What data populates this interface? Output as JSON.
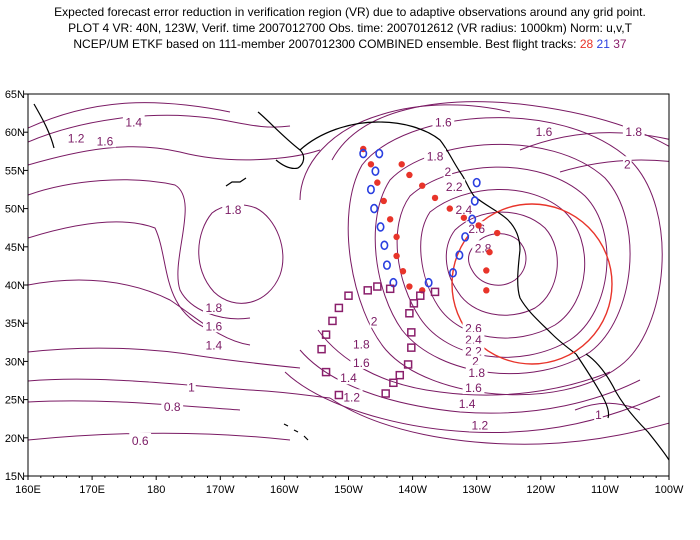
{
  "title": {
    "line1": "Expected forecast error reduction in verification region (VR) due to adaptive observations around any grid point.",
    "line2": "PLOT 4 VR: 40N, 123W, Verif. time 2007012700 Obs. time: 2007012612 (VR radius: 1000km) Norm: u,v,T",
    "line3_prefix": "NCEP/UM ETKF based on 111-member 2007012300 COMBINED ensemble.  Best flight tracks:",
    "track_ids": [
      "28",
      "21",
      "37"
    ]
  },
  "colors": {
    "contour": "#7a1a64",
    "verification_circle": "#e8342a",
    "track_28": "#e8342a",
    "track_21": "#2a3fe0",
    "track_37": "#8a1f6b",
    "coast": "#000000"
  },
  "axes": {
    "lon_labels": [
      "160E",
      "170E",
      "180",
      "170W",
      "160W",
      "150W",
      "140W",
      "130W",
      "120W",
      "110W",
      "100W"
    ],
    "lat_labels": [
      "15N",
      "20N",
      "25N",
      "30N",
      "35N",
      "40N",
      "45N",
      "50N",
      "55N",
      "60N",
      "65N"
    ],
    "lon_range_east": [
      160,
      260
    ],
    "lat_range": [
      15,
      65
    ]
  },
  "verification_region": {
    "lat": 40,
    "lon": -123,
    "radius_km": 1000
  },
  "contour_labels": [
    {
      "value": "1.2",
      "lat": 59.2,
      "lon": 167.5
    },
    {
      "value": "1.4",
      "lat": 61.3,
      "lon": 176.5
    },
    {
      "value": "1.6",
      "lat": 58.8,
      "lon": 172.0
    },
    {
      "value": "1.8",
      "lat": 49.8,
      "lon": 192.0
    },
    {
      "value": "1.8",
      "lat": 37.0,
      "lon": 189.0
    },
    {
      "value": "1.6",
      "lat": 34.6,
      "lon": 189.0
    },
    {
      "value": "1.4",
      "lat": 32.1,
      "lon": 189.0
    },
    {
      "value": "1",
      "lat": 26.6,
      "lon": 185.5
    },
    {
      "value": "0.8",
      "lat": 24.0,
      "lon": 182.5
    },
    {
      "value": "0.6",
      "lat": 19.6,
      "lon": 177.5
    },
    {
      "value": "1.6",
      "lat": 61.3,
      "lon": 224.8
    },
    {
      "value": "1.8",
      "lat": 56.8,
      "lon": 223.5
    },
    {
      "value": "2",
      "lat": 54.8,
      "lon": 225.5
    },
    {
      "value": "2.2",
      "lat": 52.8,
      "lon": 226.5
    },
    {
      "value": "2.4",
      "lat": 49.8,
      "lon": 228.0
    },
    {
      "value": "2.6",
      "lat": 47.3,
      "lon": 230.0
    },
    {
      "value": "2.8",
      "lat": 44.8,
      "lon": 231.0
    },
    {
      "value": "2",
      "lat": 35.2,
      "lon": 214.0
    },
    {
      "value": "1.8",
      "lat": 32.2,
      "lon": 212.0
    },
    {
      "value": "1.6",
      "lat": 29.8,
      "lon": 212.0
    },
    {
      "value": "1.4",
      "lat": 27.8,
      "lon": 210.0
    },
    {
      "value": "1.2",
      "lat": 25.3,
      "lon": 210.5
    },
    {
      "value": "2.6",
      "lat": 34.3,
      "lon": 229.5
    },
    {
      "value": "2.4",
      "lat": 32.8,
      "lon": 229.5
    },
    {
      "value": "2.2",
      "lat": 31.3,
      "lon": 229.5
    },
    {
      "value": "2",
      "lat": 30.0,
      "lon": 229.8
    },
    {
      "value": "1.8",
      "lat": 28.5,
      "lon": 230.0
    },
    {
      "value": "1.6",
      "lat": 26.5,
      "lon": 229.5
    },
    {
      "value": "1.4",
      "lat": 24.4,
      "lon": 228.5
    },
    {
      "value": "1.2",
      "lat": 21.6,
      "lon": 230.5
    },
    {
      "value": "1.6",
      "lat": 60.0,
      "lon": 240.5
    },
    {
      "value": "1.8",
      "lat": 60.0,
      "lon": 254.5
    },
    {
      "value": "2",
      "lat": 55.8,
      "lon": 253.5
    },
    {
      "value": "1",
      "lat": 23.0,
      "lon": 249.0
    }
  ],
  "tracks": [
    {
      "id": "28",
      "marker": "dot",
      "points": [
        {
          "lat": 57.8,
          "lon": 212.3
        },
        {
          "lat": 55.8,
          "lon": 213.5
        },
        {
          "lat": 53.4,
          "lon": 214.5
        },
        {
          "lat": 51.0,
          "lon": 215.5
        },
        {
          "lat": 48.6,
          "lon": 216.5
        },
        {
          "lat": 46.3,
          "lon": 217.5
        },
        {
          "lat": 43.8,
          "lon": 217.5
        },
        {
          "lat": 41.8,
          "lon": 218.5
        },
        {
          "lat": 39.8,
          "lon": 219.5
        },
        {
          "lat": 39.3,
          "lon": 221.5
        },
        {
          "lat": 39.3,
          "lon": 231.5
        },
        {
          "lat": 41.9,
          "lon": 231.5
        },
        {
          "lat": 44.3,
          "lon": 232.0
        },
        {
          "lat": 46.8,
          "lon": 233.2
        },
        {
          "lat": 47.8,
          "lon": 230.3
        },
        {
          "lat": 48.8,
          "lon": 228.0
        },
        {
          "lat": 50.0,
          "lon": 225.8
        },
        {
          "lat": 51.4,
          "lon": 223.5
        },
        {
          "lat": 53.0,
          "lon": 221.5
        },
        {
          "lat": 54.4,
          "lon": 219.5
        },
        {
          "lat": 55.8,
          "lon": 218.3
        }
      ]
    },
    {
      "id": "21",
      "marker": "ring",
      "points": [
        {
          "lat": 57.2,
          "lon": 212.3
        },
        {
          "lat": 57.2,
          "lon": 214.8
        },
        {
          "lat": 54.9,
          "lon": 214.2
        },
        {
          "lat": 52.5,
          "lon": 213.5
        },
        {
          "lat": 50.0,
          "lon": 214.0
        },
        {
          "lat": 47.6,
          "lon": 215.0
        },
        {
          "lat": 45.2,
          "lon": 215.6
        },
        {
          "lat": 42.6,
          "lon": 216.0
        },
        {
          "lat": 40.3,
          "lon": 217.0
        },
        {
          "lat": 40.3,
          "lon": 222.5
        },
        {
          "lat": 41.6,
          "lon": 226.3
        },
        {
          "lat": 43.9,
          "lon": 227.3
        },
        {
          "lat": 46.3,
          "lon": 228.2
        },
        {
          "lat": 48.6,
          "lon": 229.3
        },
        {
          "lat": 51.0,
          "lon": 229.7
        },
        {
          "lat": 53.4,
          "lon": 230.0
        }
      ]
    },
    {
      "id": "37",
      "marker": "square",
      "points": [
        {
          "lat": 39.1,
          "lon": 223.5
        },
        {
          "lat": 38.6,
          "lon": 221.2
        },
        {
          "lat": 37.6,
          "lon": 220.2
        },
        {
          "lat": 36.3,
          "lon": 219.5
        },
        {
          "lat": 33.8,
          "lon": 219.8
        },
        {
          "lat": 31.8,
          "lon": 219.8
        },
        {
          "lat": 29.6,
          "lon": 219.3
        },
        {
          "lat": 28.2,
          "lon": 218.0
        },
        {
          "lat": 27.2,
          "lon": 217.0
        },
        {
          "lat": 25.8,
          "lon": 215.8
        },
        {
          "lat": 25.6,
          "lon": 208.5
        },
        {
          "lat": 28.6,
          "lon": 206.5
        },
        {
          "lat": 31.6,
          "lon": 205.8
        },
        {
          "lat": 33.5,
          "lon": 206.5
        },
        {
          "lat": 35.3,
          "lon": 207.5
        },
        {
          "lat": 37.0,
          "lon": 208.5
        },
        {
          "lat": 38.6,
          "lon": 210.0
        },
        {
          "lat": 39.3,
          "lon": 213.0
        },
        {
          "lat": 39.8,
          "lon": 214.5
        },
        {
          "lat": 39.5,
          "lon": 216.5
        }
      ]
    }
  ]
}
